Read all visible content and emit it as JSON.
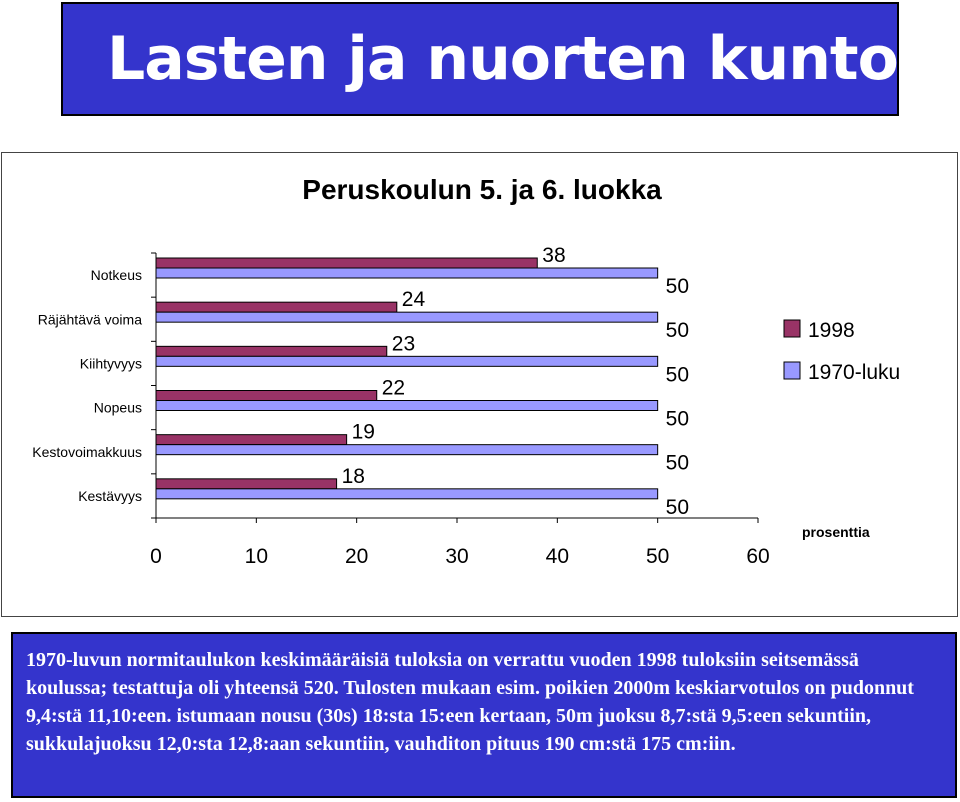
{
  "header": {
    "title": "Lasten ja nuorten kunto"
  },
  "chart_data": {
    "type": "bar",
    "orientation": "horizontal",
    "title": "Peruskoulun 5. ja 6. luokka",
    "xlabel": "prosenttia",
    "categories": [
      "Notkeus",
      "Räjähtävä voima",
      "Kiihtyvyys",
      "Nopeus",
      "Kestovoimakkuus",
      "Kestävyys"
    ],
    "series": [
      {
        "name": "1998",
        "values": [
          38,
          24,
          23,
          22,
          19,
          18
        ],
        "color": "#993366"
      },
      {
        "name": "1970-luku",
        "values": [
          50,
          50,
          50,
          50,
          50,
          50
        ],
        "color": "#9999ff"
      }
    ],
    "xlim": [
      0,
      60
    ],
    "xticks": [
      0,
      10,
      20,
      30,
      40,
      50,
      60
    ],
    "legend": "right",
    "grid": false
  },
  "description": "1970-luvun normitaulukon keskimääräisiä tuloksia on verrattu vuoden 1998 tuloksiin seitsemässä koulussa; testattuja oli yhteensä 520. Tulosten mukaan esim. poikien 2000m keskiarvotulos on pudonnut 9,4:stä 11,10:een. istumaan nousu (30s) 18:sta 15:een kertaan, 50m juoksu 8,7:stä 9,5:een sekuntiin, sukkulajuoksu 12,0:sta 12,8:aan sekuntiin, vauhditon pituus 190 cm:stä 175 cm:iin."
}
